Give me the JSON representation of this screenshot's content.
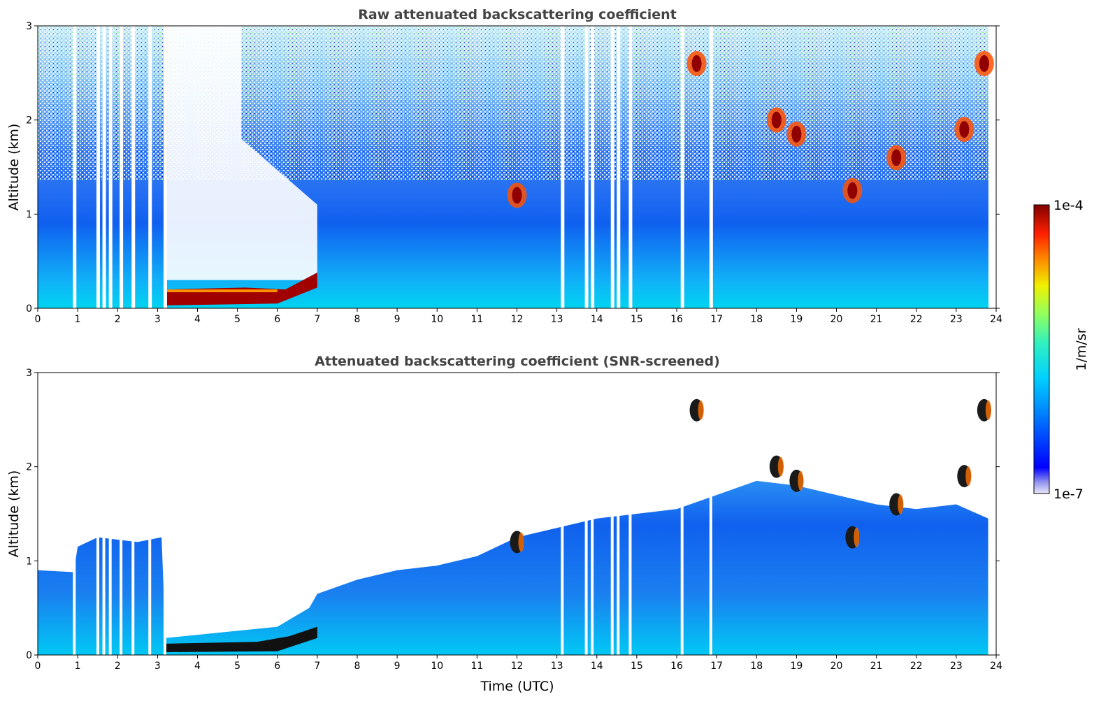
{
  "chart_data": [
    {
      "type": "heatmap",
      "title": "Raw attenuated backscattering coefficient",
      "xlabel": "",
      "ylabel": "Altitude (km)",
      "xlim": [
        0,
        24
      ],
      "ylim": [
        0,
        3
      ],
      "x_ticks": [
        "0",
        "1",
        "2",
        "3",
        "4",
        "5",
        "6",
        "7",
        "8",
        "9",
        "10",
        "11",
        "12",
        "13",
        "14",
        "15",
        "16",
        "17",
        "18",
        "19",
        "20",
        "21",
        "22",
        "23",
        "24"
      ],
      "y_ticks": [
        "0",
        "1",
        "2",
        "3"
      ],
      "data_gaps_hours": [
        0.88,
        1.47,
        1.62,
        1.78,
        2.05,
        2.35,
        2.77,
        3.15,
        13.1,
        13.7,
        13.85,
        14.35,
        14.5,
        14.8,
        16.1,
        16.82
      ],
      "features": {
        "fog_layer": {
          "time_start": 3.2,
          "time_end": 7.0,
          "altitude_km": [
            0.05,
            0.25
          ],
          "intensity": "max"
        },
        "clouds": [
          {
            "time": 16.5,
            "altitude_km": 2.6
          },
          {
            "time": 18.5,
            "altitude_km": 2.0
          },
          {
            "time": 19.0,
            "altitude_km": 1.85
          },
          {
            "time": 20.4,
            "altitude_km": 1.25
          },
          {
            "time": 21.5,
            "altitude_km": 1.6
          },
          {
            "time": 23.2,
            "altitude_km": 1.9
          },
          {
            "time": 23.7,
            "altitude_km": 2.6
          },
          {
            "time": 12.0,
            "altitude_km": 1.2
          }
        ]
      },
      "colorscale": {
        "name": "jet",
        "min_label": "1e-7",
        "max_label": "1e-4",
        "unit": "1/m/sr"
      }
    },
    {
      "type": "heatmap",
      "title": "Attenuated backscattering coefficient (SNR-screened)",
      "xlabel": "Time (UTC)",
      "ylabel": "Altitude (km)",
      "xlim": [
        0,
        24
      ],
      "ylim": [
        0,
        3
      ],
      "x_ticks": [
        "0",
        "1",
        "2",
        "3",
        "4",
        "5",
        "6",
        "7",
        "8",
        "9",
        "10",
        "11",
        "12",
        "13",
        "14",
        "15",
        "16",
        "17",
        "18",
        "19",
        "20",
        "21",
        "22",
        "23",
        "24"
      ],
      "y_ticks": [
        "0",
        "1",
        "2",
        "3"
      ],
      "signal_top_km": [
        [
          0,
          0.9
        ],
        [
          0.9,
          0.88
        ],
        [
          1.0,
          1.15
        ],
        [
          1.5,
          1.25
        ],
        [
          2.5,
          1.2
        ],
        [
          3.1,
          1.25
        ],
        [
          3.2,
          0.18
        ],
        [
          6.0,
          0.3
        ],
        [
          6.8,
          0.5
        ],
        [
          7.0,
          0.65
        ],
        [
          8.0,
          0.8
        ],
        [
          9.0,
          0.9
        ],
        [
          10.0,
          0.95
        ],
        [
          11.0,
          1.05
        ],
        [
          12.0,
          1.25
        ],
        [
          13.0,
          1.35
        ],
        [
          14.0,
          1.45
        ],
        [
          15.0,
          1.5
        ],
        [
          16.0,
          1.55
        ],
        [
          17.0,
          1.7
        ],
        [
          18.0,
          1.85
        ],
        [
          19.0,
          1.8
        ],
        [
          20.0,
          1.7
        ],
        [
          21.0,
          1.6
        ],
        [
          22.0,
          1.55
        ],
        [
          23.0,
          1.6
        ],
        [
          23.8,
          1.45
        ]
      ]
    }
  ],
  "colorbar": {
    "max_label": "1e-4",
    "min_label": "1e-7",
    "unit_label": "1/m/sr"
  }
}
